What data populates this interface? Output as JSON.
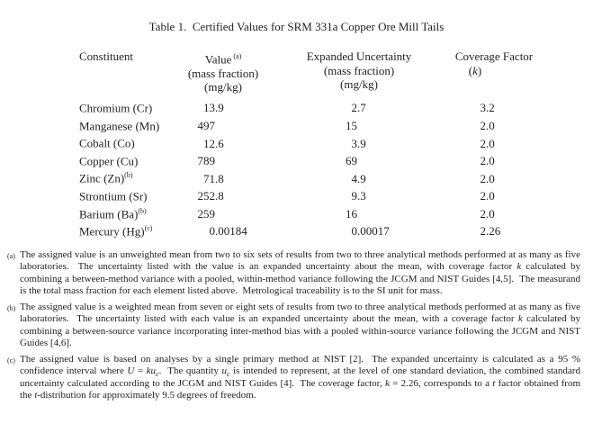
{
  "title": "Table 1.  Certified Values for SRM 331a Copper Ore Mill Tails",
  "table": {
    "columns": [
      {
        "title": "Constituent",
        "sup": "",
        "sub1": "",
        "sub2": ""
      },
      {
        "title": "Value",
        "sup": "(a)",
        "sub1": "(mass fraction)",
        "sub2": "(mg/kg)"
      },
      {
        "title": "Expanded Uncertainty",
        "sup": "",
        "sub1": "(mass fraction)",
        "sub2": "(mg/kg)"
      },
      {
        "title": "Coverage Factor",
        "sup": "",
        "k_open": "(",
        "k_italic": "k",
        "k_close": ")",
        "sub2": ""
      }
    ],
    "rows": [
      {
        "constituent": "Chromium (Cr)",
        "sup": "",
        "value_int": "13",
        "value_frac": ".9",
        "unc_int": "2",
        "unc_frac": ".7",
        "k_int": "3",
        "k_frac": ".2"
      },
      {
        "constituent": "Manganese (Mn)",
        "sup": "",
        "value_int": "497",
        "value_frac": "",
        "unc_int": "15",
        "unc_frac": "",
        "k_int": "2",
        "k_frac": ".0"
      },
      {
        "constituent": "Cobalt (Co)",
        "sup": "",
        "value_int": "12",
        "value_frac": ".6",
        "unc_int": "3",
        "unc_frac": ".9",
        "k_int": "2",
        "k_frac": ".0"
      },
      {
        "constituent": "Copper (Cu)",
        "sup": "",
        "value_int": "789",
        "value_frac": "",
        "unc_int": "69",
        "unc_frac": "",
        "k_int": "2",
        "k_frac": ".0"
      },
      {
        "constituent": "Zinc (Zn)",
        "sup": "(b)",
        "value_int": "71",
        "value_frac": ".8",
        "unc_int": "4",
        "unc_frac": ".9",
        "k_int": "2",
        "k_frac": ".0"
      },
      {
        "constituent": "Strontium (Sr)",
        "sup": "",
        "value_int": "252",
        "value_frac": ".8",
        "unc_int": "9",
        "unc_frac": ".3",
        "k_int": "2",
        "k_frac": ".0"
      },
      {
        "constituent": "Barium (Ba)",
        "sup": "(b)",
        "value_int": "259",
        "value_frac": "",
        "unc_int": "16",
        "unc_frac": "",
        "k_int": "2",
        "k_frac": ".0"
      },
      {
        "constituent": "Mercury (Hg)",
        "sup": "(c)",
        "value_int": "0",
        "value_frac": ".00184",
        "unc_int": "0",
        "unc_frac": ".00017",
        "k_int": "2",
        "k_frac": ".26"
      }
    ]
  },
  "footnotes": [
    {
      "marker": "(a)",
      "runs": [
        {
          "t": "The assigned value is an unweighted mean from two to six sets of results from two to three analytical methods performed at as many as five laboratories.  The uncertainty listed with the value is an expanded uncertainty about the mean, with coverage factor "
        },
        {
          "t": "k",
          "i": true
        },
        {
          "t": " calculated by combining a between-method variance with a pooled, within-method variance following the JCGM and NIST Guides [4,5].  The measurand is the total mass fraction for each element listed above.  Metrological traceability is to the SI unit for mass."
        }
      ]
    },
    {
      "marker": "(b)",
      "runs": [
        {
          "t": "The assigned value is a weighted mean from seven or eight sets of results from two to three analytical methods performed at as many as five laboratories.  The uncertainty listed with each value is an expanded uncertainty about the mean, with a coverage factor "
        },
        {
          "t": "k",
          "i": true
        },
        {
          "t": " calculated by combining a between-source variance incorporating inter-method bias with a pooled within-source variance following the JCGM and NIST Guides [4,6]."
        }
      ]
    },
    {
      "marker": "(c)",
      "runs": [
        {
          "t": "The assigned value is based on analyses by a single primary method at NIST [2].  The expanded uncertainty is calculated as a 95 % confidence interval where "
        },
        {
          "t": "U",
          "i": true
        },
        {
          "t": " = "
        },
        {
          "t": "ku",
          "i": true
        },
        {
          "t": "c",
          "i": true,
          "sub": true
        },
        {
          "t": ".  The quantity "
        },
        {
          "t": "u",
          "i": true
        },
        {
          "t": "c",
          "i": true,
          "sub": true
        },
        {
          "t": " is intended to represent, at the level of one standard deviation, the combined standard uncertainty calculated according to the JCGM and NIST Guides [4].  The coverage factor, "
        },
        {
          "t": "k",
          "i": true
        },
        {
          "t": " = 2.26, corresponds to a "
        },
        {
          "t": "t",
          "i": true
        },
        {
          "t": " factor obtained from the "
        },
        {
          "t": "t",
          "i": true
        },
        {
          "t": "-distribution for approximately 9.5 degrees of freedom."
        }
      ]
    }
  ]
}
